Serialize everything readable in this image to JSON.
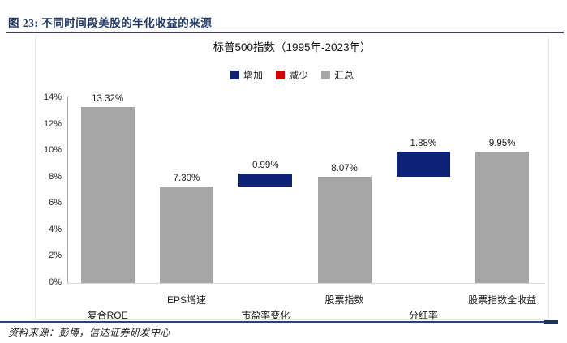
{
  "page": {
    "heading": "图 23: 不同时间段美股的年化收益的来源",
    "footer": "资料来源：彭博，信达证券研发中心"
  },
  "chart": {
    "title": "标普500指数（1995年-2023年）",
    "legend": [
      {
        "role": "increase",
        "label": "增加",
        "color": "#0E2377"
      },
      {
        "role": "decrease",
        "label": "减少",
        "color": "#D40000"
      },
      {
        "role": "total",
        "label": "汇总",
        "color": "#A6A6A6"
      }
    ]
  },
  "chart_data": {
    "type": "bar",
    "subtype": "waterfall",
    "title": "标普500指数（1995年-2023年）",
    "xlabel": "",
    "ylabel": "",
    "ylim": [
      0,
      14
    ],
    "ytick_step": 2,
    "ytick_format": "percent",
    "grid": false,
    "legend_position": "top",
    "colors": {
      "increase": "#0E2377",
      "decrease": "#D40000",
      "total": "#A6A6A6"
    },
    "categories": [
      "复合ROE",
      "EPS增速",
      "市盈率变化",
      "股票指数",
      "分红率",
      "股票指数全收益"
    ],
    "points": [
      {
        "key": "composite-roe",
        "category": "复合ROE",
        "value": 13.32,
        "label": "13.32%",
        "start": 0,
        "end": 13.32,
        "role": "total"
      },
      {
        "key": "eps-growth",
        "category": "EPS增速",
        "value": 7.3,
        "label": "7.30%",
        "start": 0,
        "end": 7.3,
        "role": "total"
      },
      {
        "key": "pe-change",
        "category": "市盈率变化",
        "value": 0.99,
        "label": "0.99%",
        "start": 7.3,
        "end": 8.29,
        "role": "increase"
      },
      {
        "key": "price-index",
        "category": "股票指数",
        "value": 8.07,
        "label": "8.07%",
        "start": 0,
        "end": 8.07,
        "role": "total"
      },
      {
        "key": "dividend-yield",
        "category": "分红率",
        "value": 1.88,
        "label": "1.88%",
        "start": 8.07,
        "end": 9.95,
        "role": "increase"
      },
      {
        "key": "total-return",
        "category": "股票指数全收益",
        "value": 9.95,
        "label": "9.95%",
        "start": 0,
        "end": 9.95,
        "role": "total"
      }
    ]
  }
}
